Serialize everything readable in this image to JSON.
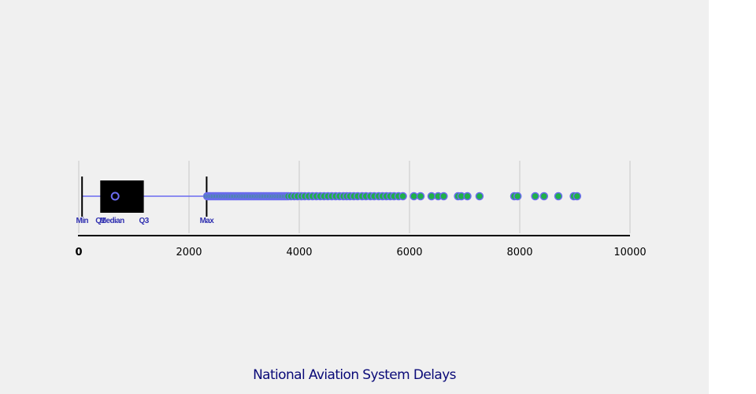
{
  "chart_data": {
    "type": "boxplot",
    "orientation": "horizontal",
    "title": "National Aviation System Delays",
    "xlabel": "",
    "ylabel": "",
    "xlim": [
      0,
      10000
    ],
    "x_ticks": [
      0,
      2000,
      4000,
      6000,
      8000,
      10000
    ],
    "grid": true,
    "box": {
      "min": 60,
      "q1": 390,
      "median": 660,
      "q3": 1180,
      "max": 2320
    },
    "stat_labels": {
      "min": "Min",
      "q1": "Q1",
      "median": "Median",
      "q3": "Q3",
      "max": "Max"
    },
    "outliers": [
      2330,
      2360,
      2390,
      2420,
      2450,
      2480,
      2510,
      2540,
      2570,
      2600,
      2630,
      2660,
      2690,
      2720,
      2750,
      2780,
      2810,
      2840,
      2870,
      2900,
      2930,
      2960,
      2990,
      3020,
      3050,
      3080,
      3110,
      3140,
      3170,
      3200,
      3230,
      3260,
      3290,
      3320,
      3350,
      3380,
      3410,
      3440,
      3470,
      3500,
      3530,
      3560,
      3590,
      3620,
      3650,
      3680,
      3710,
      3740,
      3770,
      3800,
      3850,
      3910,
      3970,
      4040,
      4100,
      4170,
      4240,
      4310,
      4380,
      4450,
      4520,
      4590,
      4660,
      4730,
      4800,
      4860,
      4920,
      4990,
      5060,
      5140,
      5210,
      5290,
      5360,
      5440,
      5510,
      5580,
      5650,
      5720,
      5800,
      5880,
      6080,
      6200,
      6400,
      6520,
      6620,
      6880,
      6940,
      7050,
      7270,
      7900,
      7960,
      8280,
      8440,
      8700,
      8980,
      9040
    ],
    "colors": {
      "box_fill": "#000000",
      "whisker": "#6b6bef",
      "outlier_fill": "#1fb04a",
      "outlier_stroke": "#6b6bef",
      "median_marker": "#6b6bef",
      "grid": "#c8c8c8",
      "axis": "#000000",
      "stat_label": "#3030b0",
      "title": "#0a0a78",
      "background": "#f0f0f0"
    }
  }
}
